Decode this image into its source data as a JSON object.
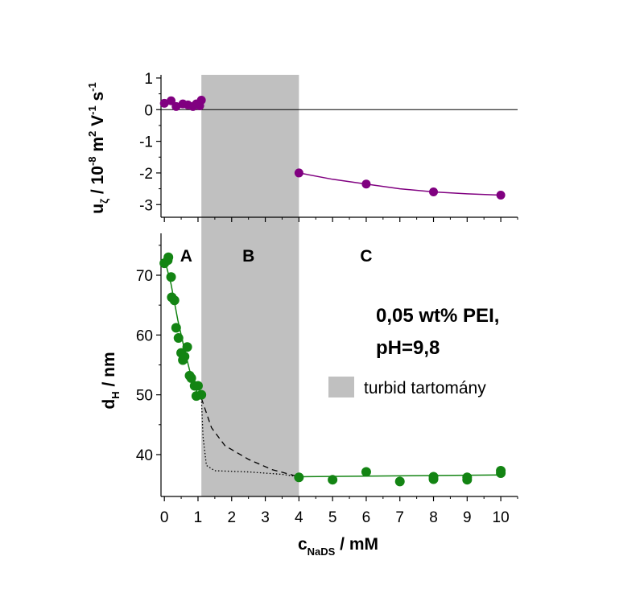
{
  "chart_data": [
    {
      "type": "scatter",
      "panel": "top",
      "ylabel": {
        "symbol": "u",
        "subscript": "ζ",
        "unit_prefix": " / 10",
        "exp1": "-8",
        "unit_mid": " m",
        "exp2": "2",
        "unit_mid2": " V",
        "exp3": "-1",
        "unit_end": " s",
        "exp4": "-1"
      },
      "xlim": [
        0,
        10.5
      ],
      "ylim": [
        -3.4,
        1.1
      ],
      "yticks": [
        1,
        0,
        -1,
        -2,
        -3
      ],
      "ytick_labels": [
        "1",
        "0",
        "-1",
        "-2",
        "-3"
      ],
      "zero_line": true,
      "series": [
        {
          "color": "#800080",
          "points": [
            [
              0,
              0.2
            ],
            [
              0.2,
              0.28
            ],
            [
              0.35,
              0.1
            ],
            [
              0.55,
              0.18
            ],
            [
              0.7,
              0.15
            ],
            [
              0.85,
              0.1
            ],
            [
              0.95,
              0.18
            ],
            [
              1.05,
              0.12
            ],
            [
              1.1,
              0.3
            ],
            [
              4,
              -2.0
            ],
            [
              6,
              -2.35
            ],
            [
              8,
              -2.6
            ],
            [
              10,
              -2.7
            ]
          ],
          "fit_line": [
            [
              4,
              -2.0
            ],
            [
              5,
              -2.2
            ],
            [
              6,
              -2.35
            ],
            [
              7,
              -2.5
            ],
            [
              8,
              -2.6
            ],
            [
              9,
              -2.66
            ],
            [
              10,
              -2.7
            ]
          ]
        }
      ]
    },
    {
      "type": "scatter",
      "panel": "bottom",
      "xlabel": {
        "symbol": "c",
        "subscript": "NaDS",
        "unit": " / mM"
      },
      "ylabel": {
        "symbol": "d",
        "subscript": "H",
        "unit": " / nm"
      },
      "xlim": [
        -0.1,
        10.5
      ],
      "ylim": [
        33,
        77
      ],
      "xticks": [
        0,
        1,
        2,
        3,
        4,
        5,
        6,
        7,
        8,
        9,
        10
      ],
      "xtick_labels": [
        "0",
        "1",
        "2",
        "3",
        "4",
        "5",
        "6",
        "7",
        "8",
        "9",
        "10"
      ],
      "yticks": [
        40,
        50,
        60,
        70
      ],
      "ytick_labels": [
        "40",
        "50",
        "60",
        "70"
      ],
      "series": [
        {
          "color": "#138413",
          "points": [
            [
              0,
              72
            ],
            [
              0.1,
              72.5
            ],
            [
              0.12,
              73
            ],
            [
              0.2,
              69.7
            ],
            [
              0.22,
              66.3
            ],
            [
              0.3,
              65.8
            ],
            [
              0.35,
              61.2
            ],
            [
              0.42,
              59.5
            ],
            [
              0.5,
              57
            ],
            [
              0.55,
              55.8
            ],
            [
              0.6,
              56.4
            ],
            [
              0.68,
              58
            ],
            [
              0.75,
              53.2
            ],
            [
              0.8,
              52.8
            ],
            [
              0.9,
              51.5
            ],
            [
              0.95,
              49.8
            ],
            [
              1.0,
              51.5
            ],
            [
              1.1,
              50
            ],
            [
              4,
              36.2
            ],
            [
              5,
              35.8
            ],
            [
              6,
              37.1
            ],
            [
              7,
              35.5
            ],
            [
              8,
              35.9
            ],
            [
              8,
              36.3
            ],
            [
              9,
              35.8
            ],
            [
              9,
              36.2
            ],
            [
              10,
              36.9
            ],
            [
              10,
              37.3
            ]
          ],
          "fit_line": [
            [
              0,
              72.8
            ],
            [
              0.2,
              68.5
            ],
            [
              0.4,
              62.5
            ],
            [
              0.6,
              57.5
            ],
            [
              0.8,
              53
            ],
            [
              1.0,
              50
            ],
            [
              1.1,
              49.4
            ]
          ],
          "fit_line_c": [
            [
              4,
              36.3
            ],
            [
              10,
              36.6
            ]
          ],
          "dashed_line": [
            [
              1.1,
              49.4
            ],
            [
              1.4,
              44.5
            ],
            [
              1.8,
              41.5
            ],
            [
              2.5,
              39.2
            ],
            [
              3.2,
              37.5
            ],
            [
              4,
              36.3
            ]
          ],
          "dotted_line": [
            [
              1.1,
              49.4
            ],
            [
              1.15,
              43
            ],
            [
              1.25,
              38.2
            ],
            [
              1.5,
              37.3
            ],
            [
              2.5,
              37.1
            ],
            [
              3.5,
              36.7
            ],
            [
              4,
              36.3
            ]
          ]
        }
      ],
      "region_labels": [
        {
          "text": "A",
          "x": 0.65
        },
        {
          "text": "B",
          "x": 2.5
        },
        {
          "text": "C",
          "x": 6
        }
      ]
    }
  ],
  "shaded_region": {
    "x_from": 1.1,
    "x_to": 4,
    "color": "#c0c0c0"
  },
  "annotation": {
    "line1": "0,05 wt% PEI,",
    "line2": "pH=9,8"
  },
  "legend": {
    "label": "turbid tartomány",
    "color": "#c0c0c0"
  }
}
